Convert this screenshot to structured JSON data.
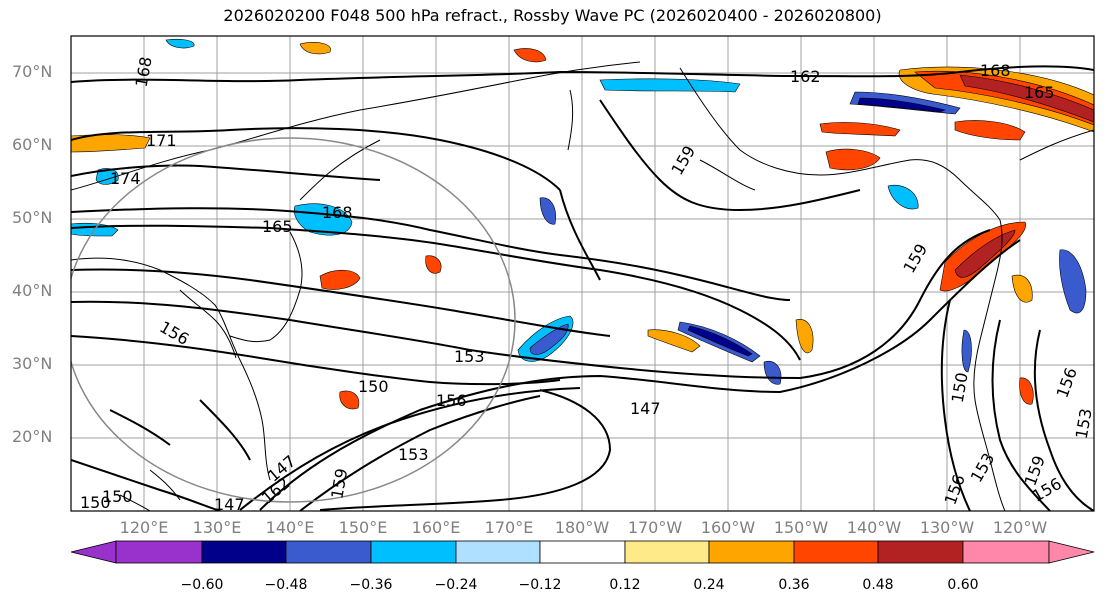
{
  "title": "2026020200 F048 500 hPa refract., Rossby Wave PC (2026020400 - 2026020800)",
  "lat_labels": [
    "70°N",
    "60°N",
    "50°N",
    "40°N",
    "30°N",
    "20°N"
  ],
  "lon_labels": [
    "120°E",
    "130°E",
    "140°E",
    "150°E",
    "160°E",
    "170°E",
    "180°W",
    "170°W",
    "160°W",
    "150°W",
    "140°W",
    "130°W",
    "120°W"
  ],
  "contour_labels": [
    "168",
    "171",
    "174",
    "165",
    "168",
    "162",
    "165",
    "168",
    "159",
    "159",
    "156",
    "153",
    "150",
    "156",
    "147",
    "153",
    "147",
    "162",
    "159",
    "150",
    "150",
    "156",
    "159",
    "156",
    "153",
    "150",
    "153",
    "156",
    "147"
  ],
  "colorbar": {
    "ticks": [
      "−0.60",
      "−0.48",
      "−0.36",
      "−0.24",
      "−0.12",
      "0.12",
      "0.24",
      "0.36",
      "0.48",
      "0.60"
    ],
    "colors": [
      "#9932cc",
      "#00008b",
      "#3a5bcd",
      "#00bfff",
      "#b0e0ff",
      "#ffffff",
      "#ffea8a",
      "#ffa500",
      "#ff4500",
      "#b22222",
      "#ff88aa"
    ]
  },
  "map": {
    "extent_lon": [
      110,
      250
    ],
    "extent_lat": [
      10,
      75
    ],
    "grid": true,
    "coast_color": "#000000"
  }
}
